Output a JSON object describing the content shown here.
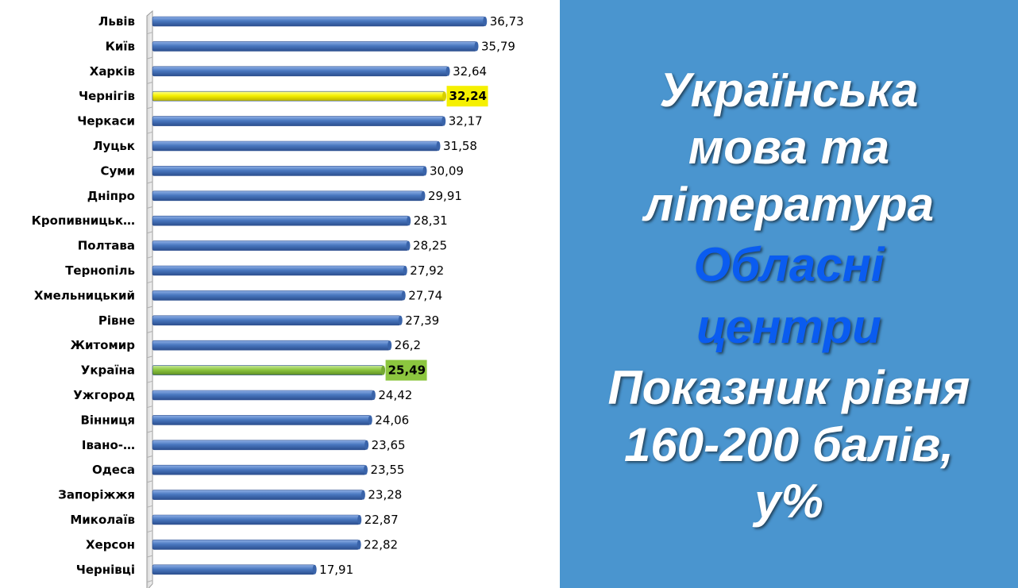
{
  "chart_data": {
    "type": "bar",
    "orientation": "horizontal",
    "categories": [
      "Львів",
      "Київ",
      "Харків",
      "Чернігів",
      "Черкаси",
      "Луцьк",
      "Суми",
      "Дніпро",
      "Кропивницьк…",
      "Полтава",
      "Тернопіль",
      "Хмельницький",
      "Рівне",
      "Житомир",
      "Україна",
      "Ужгород",
      "Вінниця",
      "Івано-…",
      "Одеса",
      "Запоріжжя",
      "Миколаїв",
      "Херсон",
      "Чернівці"
    ],
    "values": [
      36.73,
      35.79,
      32.64,
      32.24,
      32.17,
      31.58,
      30.09,
      29.91,
      28.31,
      28.25,
      27.92,
      27.74,
      27.39,
      26.2,
      25.49,
      24.42,
      24.06,
      23.65,
      23.55,
      23.28,
      22.87,
      22.82,
      17.91
    ],
    "value_labels": [
      "36,73",
      "35,79",
      "32,64",
      "32,24",
      "32,17",
      "31,58",
      "30,09",
      "29,91",
      "28,31",
      "28,25",
      "27,92",
      "27,74",
      "27,39",
      "26,2",
      "25,49",
      "24,42",
      "24,06",
      "23,65",
      "23,55",
      "23,28",
      "22,87",
      "22,82",
      "17,91"
    ],
    "xlim": [
      0,
      40
    ],
    "grid": false,
    "colors": {
      "default_bar": "#4a78c0",
      "highlight_city": "#f5f000",
      "highlight_country": "#8cc63f"
    },
    "highlights": [
      {
        "category": "Чернігів",
        "color": "#f5f000",
        "label_bg": "#f5f000"
      },
      {
        "category": "Україна",
        "color": "#8cc63f",
        "label_bg": "#8cc63f"
      }
    ]
  },
  "panel": {
    "background": "#4a95cf",
    "lines": [
      {
        "text": "Українська",
        "color": "#ffffff"
      },
      {
        "text": "мова та",
        "color": "#ffffff"
      },
      {
        "text": "література",
        "color": "#ffffff"
      },
      {
        "text": "Обласні",
        "color": "#0a5cf0"
      },
      {
        "text": "центри",
        "color": "#0a5cf0"
      },
      {
        "text": "Показник рівня",
        "color": "#ffffff"
      },
      {
        "text": "160-200 балів,",
        "color": "#ffffff"
      },
      {
        "text": "у%",
        "color": "#ffffff"
      }
    ]
  }
}
